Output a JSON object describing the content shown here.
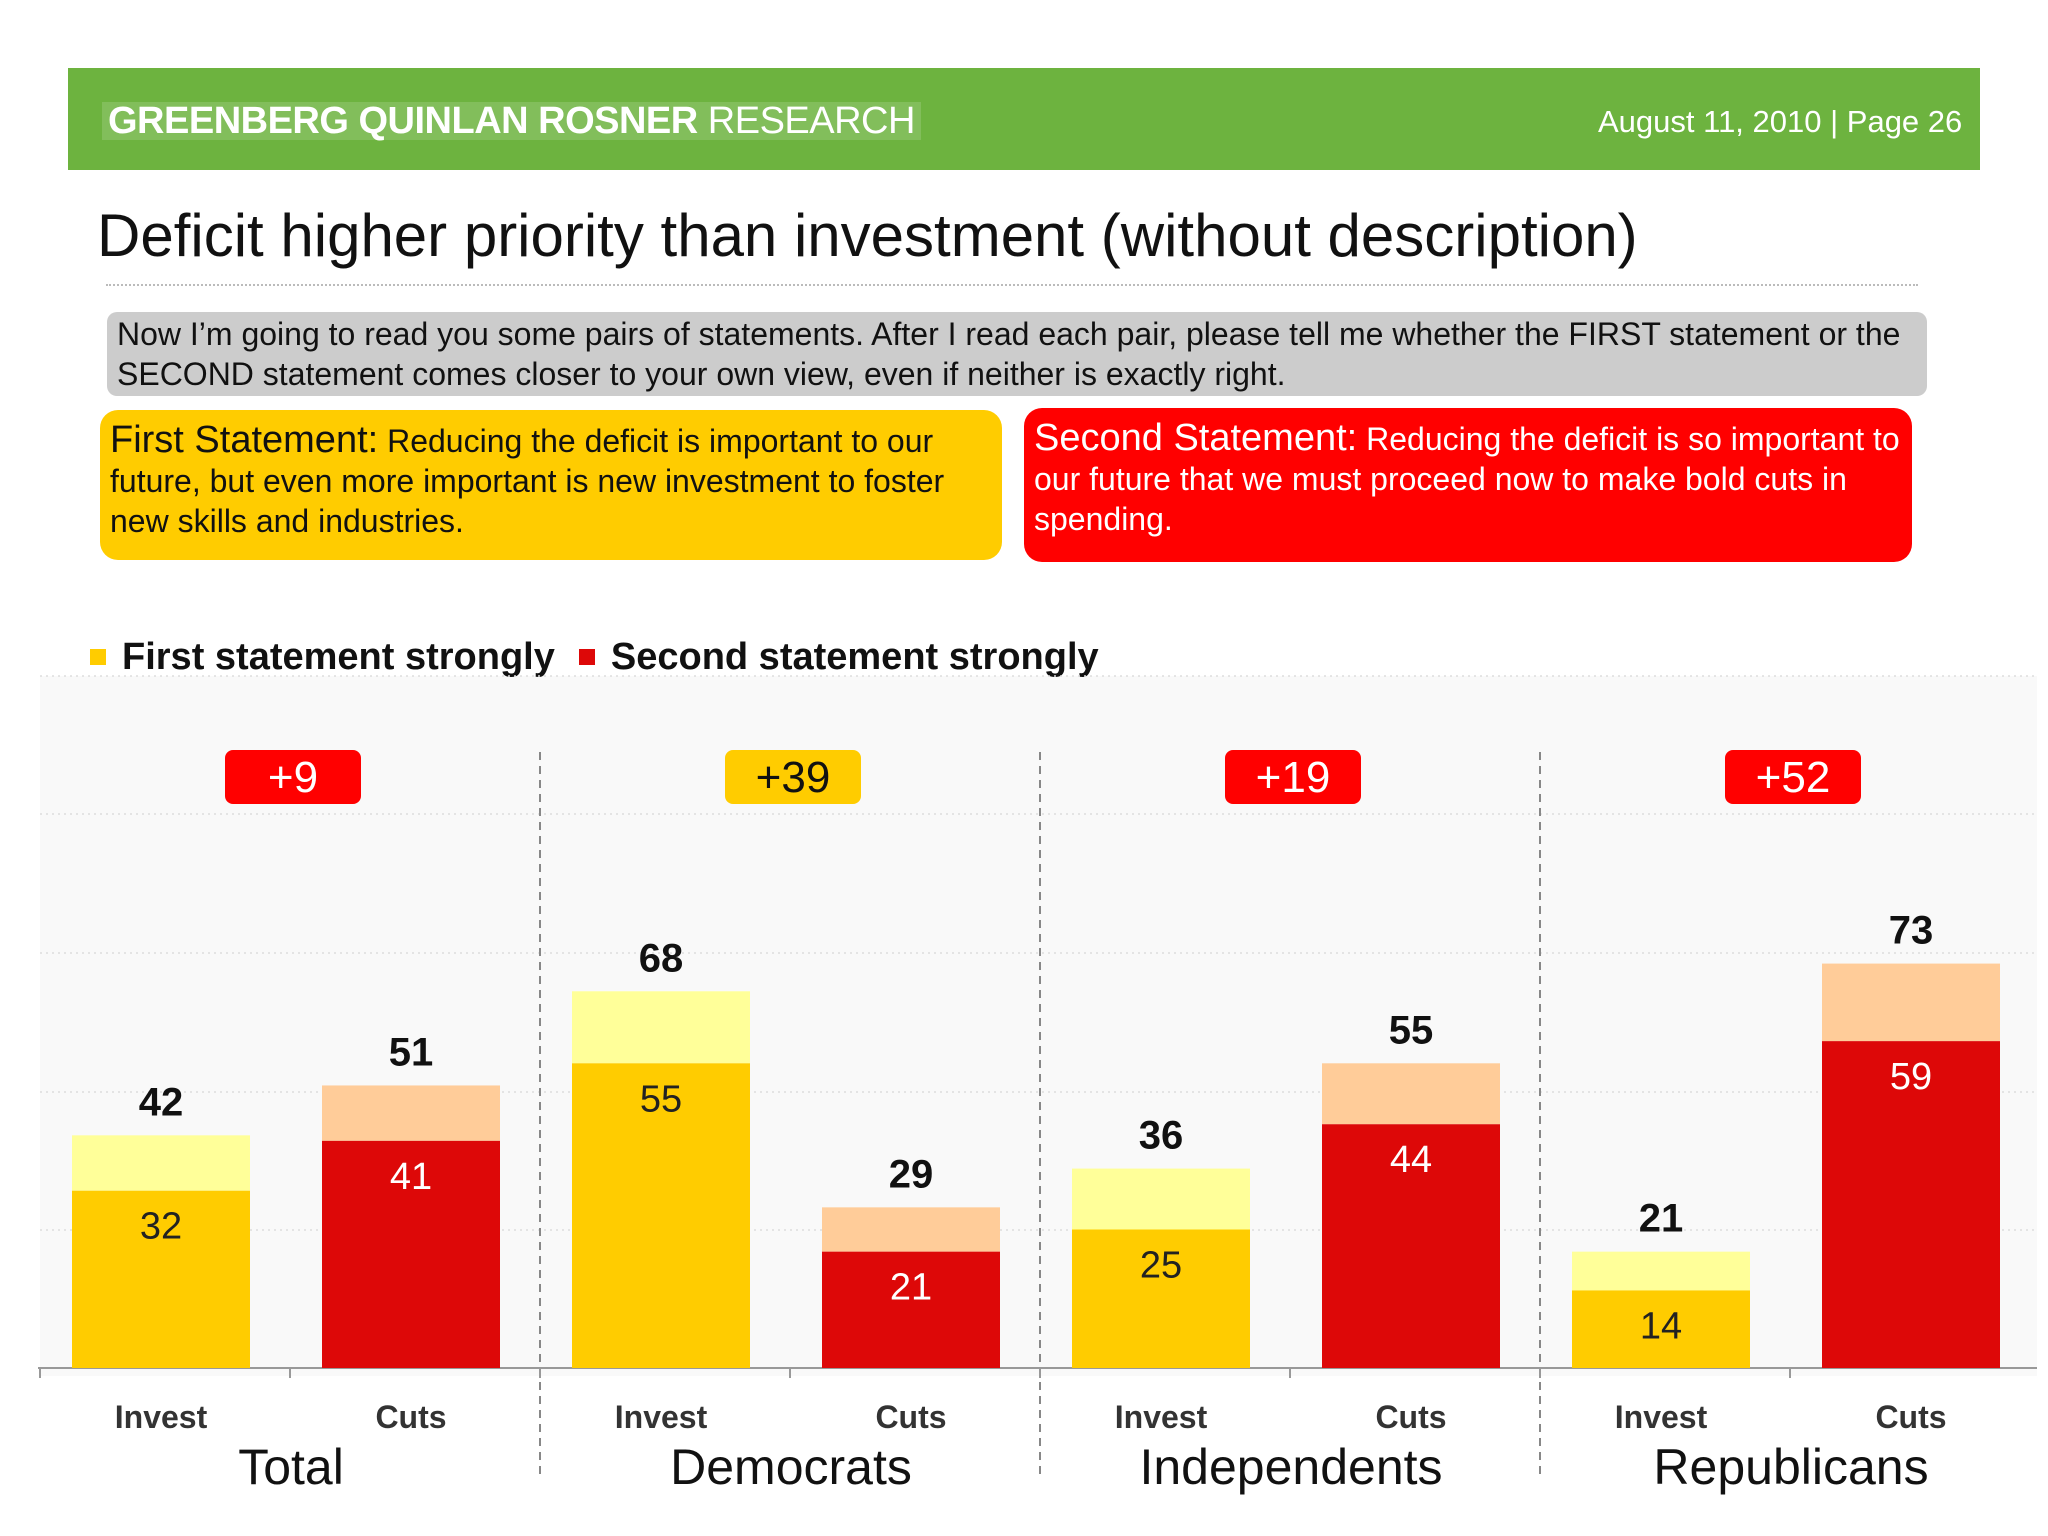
{
  "header": {
    "firm_bold": "GREENBERG QUINLAN ROSNER",
    "firm_light": "RESEARCH",
    "date_page": "August 11, 2010  |  Page 26"
  },
  "title": "Deficit higher priority than investment (without description)",
  "question": "Now I’m going to read you some pairs of statements. After I read each pair, please tell me whether the FIRST statement or the SECOND statement comes closer to your own view, even if neither is exactly right.",
  "statements": {
    "first_label": "First Statement:",
    "first_text": "Reducing the deficit is important to our future, but even more important is new investment to foster new skills and industries.",
    "second_label": "Second Statement:",
    "second_text": "Reducing the deficit is so important to our future that we must proceed now to make bold cuts in spending."
  },
  "colors": {
    "header_green": "#6db33f",
    "first_strong": "#ffcc00",
    "first_weak": "#ffff99",
    "second_strong": "#dd0808",
    "second_weak": "#ffcc99",
    "badge_red": "#ff0000",
    "badge_yellow": "#ffcc00"
  },
  "chart_data": {
    "type": "bar",
    "stacked": true,
    "legend": [
      {
        "label": "First statement strongly",
        "color": "#ffcc00"
      },
      {
        "label": "Second statement strongly",
        "color": "#dd0808"
      }
    ],
    "legend_position": "top-left",
    "ylim": [
      0,
      100
    ],
    "groups": [
      {
        "name": "Total",
        "net": "+9",
        "net_color": "red",
        "bars": [
          {
            "label": "Invest",
            "total": 42,
            "strong": 32,
            "kind": "first"
          },
          {
            "label": "Cuts",
            "total": 51,
            "strong": 41,
            "kind": "second"
          }
        ]
      },
      {
        "name": "Democrats",
        "net": "+39",
        "net_color": "yellow",
        "bars": [
          {
            "label": "Invest",
            "total": 68,
            "strong": 55,
            "kind": "first"
          },
          {
            "label": "Cuts",
            "total": 29,
            "strong": 21,
            "kind": "second"
          }
        ]
      },
      {
        "name": "Independents",
        "net": "+19",
        "net_color": "red",
        "bars": [
          {
            "label": "Invest",
            "total": 36,
            "strong": 25,
            "kind": "first"
          },
          {
            "label": "Cuts",
            "total": 55,
            "strong": 44,
            "kind": "second"
          }
        ]
      },
      {
        "name": "Republicans",
        "net": "+52",
        "net_color": "red",
        "bars": [
          {
            "label": "Invest",
            "total": 21,
            "strong": 14,
            "kind": "first"
          },
          {
            "label": "Cuts",
            "total": 73,
            "strong": 59,
            "kind": "second"
          }
        ]
      }
    ]
  }
}
